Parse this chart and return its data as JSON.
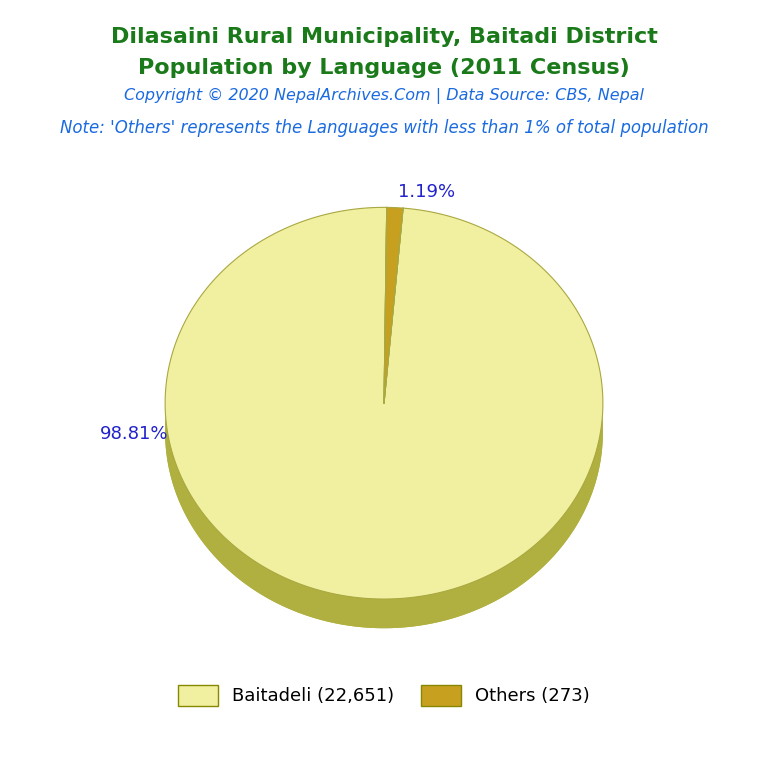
{
  "title_line1": "Dilasaini Rural Municipality, Baitadi District",
  "title_line2": "Population by Language (2011 Census)",
  "title_color": "#1a7a1a",
  "copyright_text": "Copyright © 2020 NepalArchives.Com | Data Source: CBS, Nepal",
  "copyright_color": "#1a6ae0",
  "note_text": "Note: 'Others' represents the Languages with less than 1% of total population",
  "note_color": "#1a6ae0",
  "labels": [
    "Baitadeli",
    "Others"
  ],
  "values": [
    22651,
    273
  ],
  "percentages": [
    98.81,
    1.19
  ],
  "colors_top": [
    "#f0f0a0",
    "#c8a020"
  ],
  "side_color_baitadeli": "#b0b040",
  "side_color_others": "#8a6a00",
  "edge_color": "#aaa840",
  "label_color": "#2222cc",
  "legend_text_color": "#000000",
  "background_color": "#ffffff",
  "title_fontsize": 16,
  "copyright_fontsize": 11.5,
  "note_fontsize": 12,
  "legend_fontsize": 13
}
